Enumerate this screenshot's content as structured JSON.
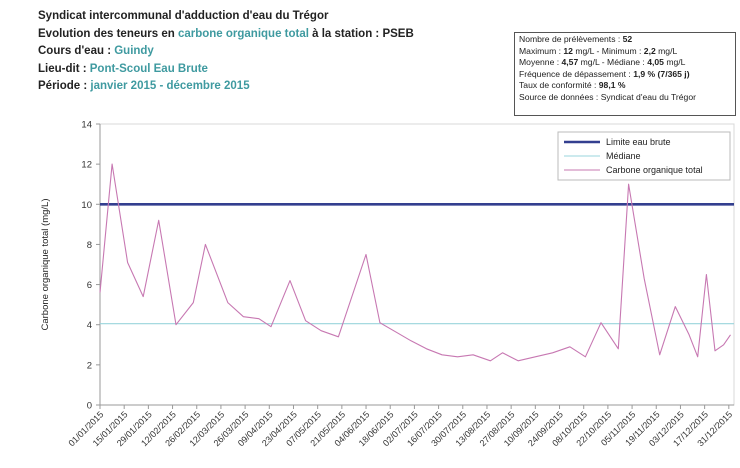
{
  "header": {
    "line1": "Syndicat intercommunal d'adduction d'eau du Trégor",
    "line2_prefix": "Evolution des teneurs en ",
    "line2_param": "carbone organique total",
    "line2_suffix": " à la station : PSEB",
    "cours_label": "Cours d'eau : ",
    "cours_value": "Guindy",
    "lieu_label": "Lieu-dit : ",
    "lieu_value": "Pont-Scoul Eau Brute",
    "periode_label": "Période : ",
    "periode_value": "janvier 2015 - décembre 2015"
  },
  "stats": {
    "nb_label": "Nombre de prélèvements : ",
    "nb_value": "52",
    "max_label": "Maximum : ",
    "max_value": "12",
    "max_unit": " mg/L - Minimum : ",
    "min_value": "2,2",
    "min_unit": " mg/L",
    "moy_label": "Moyenne : ",
    "moy_value": "4,57",
    "moy_unit": " mg/L - Médiane : ",
    "med_value": "4,05",
    "med_unit": " mg/L",
    "freq_label": "Fréquence de dépassement : ",
    "freq_value": "1,9 % (7/365 j)",
    "taux_label": "Taux de conformité : ",
    "taux_value": "98,1 %",
    "source": "Source de données : Syndicat d'eau du Trégor"
  },
  "chart_data": {
    "type": "line",
    "ylabel": "Carbone organique total (mg/L)",
    "ylim": [
      0,
      14
    ],
    "yticks": [
      0,
      2,
      4,
      6,
      8,
      10,
      12,
      14
    ],
    "xlim": [
      "2015-01-01",
      "2016-01-03"
    ],
    "xtick_labels": [
      "01/01/2015",
      "15/01/2015",
      "29/01/2015",
      "12/02/2015",
      "26/02/2015",
      "12/03/2015",
      "26/03/2015",
      "09/04/2015",
      "23/04/2015",
      "07/05/2015",
      "21/05/2015",
      "04/06/2015",
      "18/06/2015",
      "02/07/2015",
      "16/07/2015",
      "30/07/2015",
      "13/08/2015",
      "27/08/2015",
      "10/09/2015",
      "24/09/2015",
      "08/10/2015",
      "22/10/2015",
      "05/11/2015",
      "19/11/2015",
      "03/12/2015",
      "17/12/2015",
      "31/12/2015"
    ],
    "xtick_dates": [
      "2015-01-01",
      "2015-01-15",
      "2015-01-29",
      "2015-02-12",
      "2015-02-26",
      "2015-03-12",
      "2015-03-26",
      "2015-04-09",
      "2015-04-23",
      "2015-05-07",
      "2015-05-21",
      "2015-06-04",
      "2015-06-18",
      "2015-07-02",
      "2015-07-16",
      "2015-07-30",
      "2015-08-13",
      "2015-08-27",
      "2015-09-10",
      "2015-09-24",
      "2015-10-08",
      "2015-10-22",
      "2015-11-05",
      "2015-11-19",
      "2015-12-03",
      "2015-12-17",
      "2015-12-31"
    ],
    "legend_position": "top-right",
    "grid": false,
    "series": [
      {
        "name": "Limite eau brute",
        "color": "#333f8f",
        "style": "thick",
        "points": [
          [
            "2015-01-01",
            10
          ],
          [
            "2016-01-03",
            10
          ]
        ]
      },
      {
        "name": "Médiane",
        "color": "#9ad4dc",
        "style": "thin",
        "points": [
          [
            "2015-01-01",
            4.05
          ],
          [
            "2016-01-03",
            4.05
          ]
        ]
      },
      {
        "name": "Carbone organique total",
        "color": "#c778b2",
        "style": "thin",
        "points": [
          [
            "2015-01-01",
            5.6
          ],
          [
            "2015-01-08",
            12.0
          ],
          [
            "2015-01-17",
            7.1
          ],
          [
            "2015-01-26",
            5.4
          ],
          [
            "2015-02-04",
            9.2
          ],
          [
            "2015-02-14",
            4.0
          ],
          [
            "2015-02-24",
            5.1
          ],
          [
            "2015-03-03",
            8.0
          ],
          [
            "2015-03-16",
            5.1
          ],
          [
            "2015-03-25",
            4.4
          ],
          [
            "2015-04-03",
            4.3
          ],
          [
            "2015-04-10",
            3.9
          ],
          [
            "2015-04-21",
            6.2
          ],
          [
            "2015-04-30",
            4.2
          ],
          [
            "2015-05-09",
            3.7
          ],
          [
            "2015-05-19",
            3.4
          ],
          [
            "2015-06-04",
            7.5
          ],
          [
            "2015-06-12",
            4.1
          ],
          [
            "2015-06-22",
            3.6
          ],
          [
            "2015-06-30",
            3.2
          ],
          [
            "2015-07-09",
            2.8
          ],
          [
            "2015-07-18",
            2.5
          ],
          [
            "2015-07-27",
            2.4
          ],
          [
            "2015-08-05",
            2.5
          ],
          [
            "2015-08-15",
            2.2
          ],
          [
            "2015-08-22",
            2.6
          ],
          [
            "2015-08-31",
            2.2
          ],
          [
            "2015-09-10",
            2.4
          ],
          [
            "2015-09-20",
            2.6
          ],
          [
            "2015-09-30",
            2.9
          ],
          [
            "2015-10-09",
            2.4
          ],
          [
            "2015-10-18",
            4.1
          ],
          [
            "2015-10-28",
            2.8
          ],
          [
            "2015-11-03",
            11.0
          ],
          [
            "2015-11-12",
            6.3
          ],
          [
            "2015-11-21",
            2.5
          ],
          [
            "2015-11-30",
            4.9
          ],
          [
            "2015-12-08",
            3.5
          ],
          [
            "2015-12-13",
            2.4
          ],
          [
            "2015-12-18",
            6.5
          ],
          [
            "2015-12-23",
            2.7
          ],
          [
            "2015-12-28",
            3.0
          ],
          [
            "2016-01-01",
            3.5
          ]
        ]
      }
    ]
  }
}
